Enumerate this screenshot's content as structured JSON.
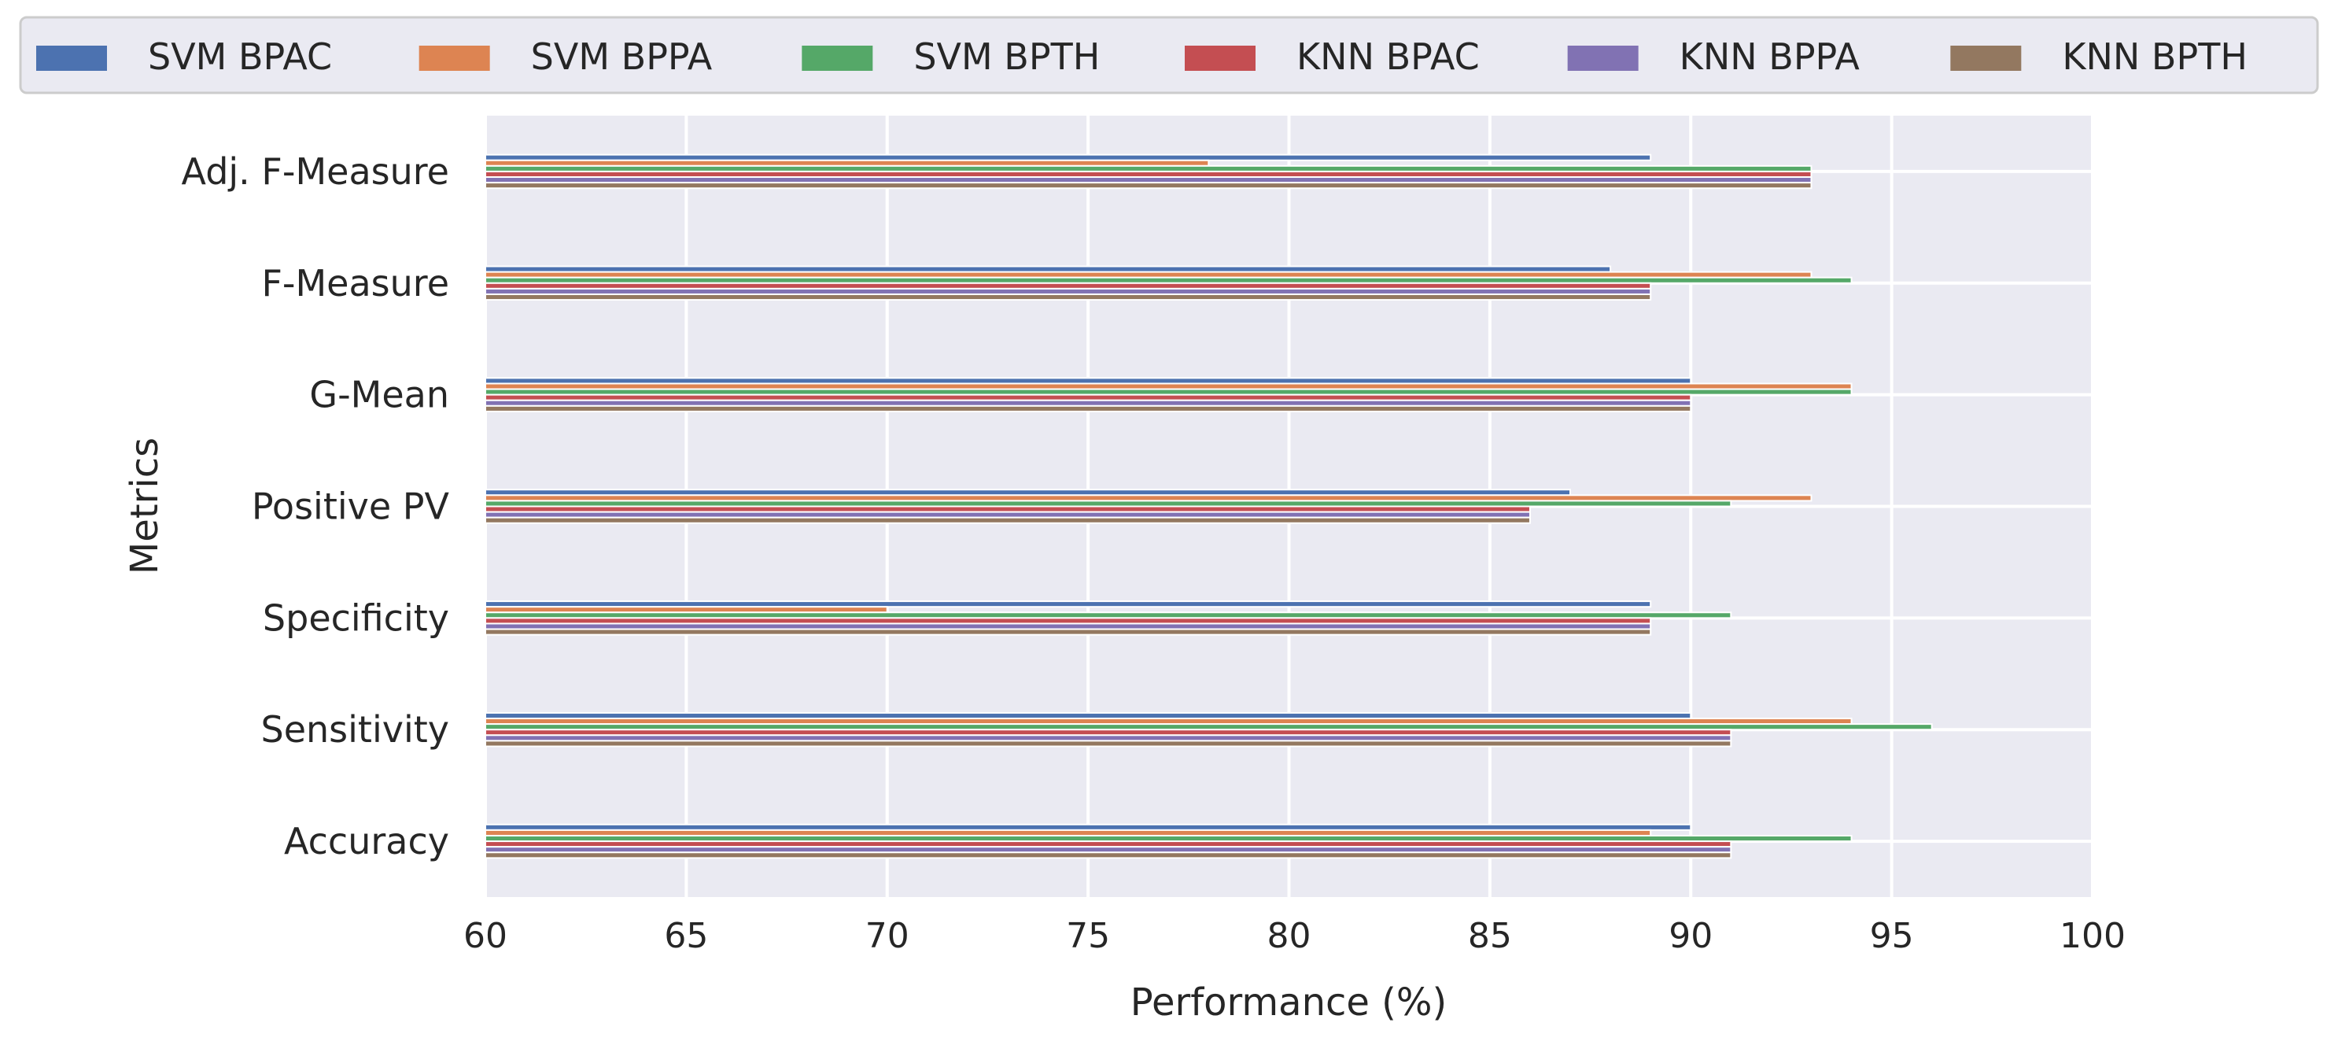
{
  "chart_data": {
    "type": "bar",
    "orientation": "horizontal",
    "title": "",
    "xlabel": "Performance (%)",
    "ylabel": "Metrics",
    "xlim": [
      60,
      100
    ],
    "xticks": [
      60,
      65,
      70,
      75,
      80,
      85,
      90,
      95,
      100
    ],
    "grid": true,
    "legend_position": "top",
    "categories": [
      "Accuracy",
      "Sensitivity",
      "Specificity",
      "Positive PV",
      "G-Mean",
      "F-Measure",
      "Adj. F-Measure"
    ],
    "series": [
      {
        "name": "SVM BPAC",
        "color": "#4c72b0",
        "values": [
          90,
          90,
          89,
          87,
          90,
          88,
          89
        ]
      },
      {
        "name": "SVM BPPA",
        "color": "#dd8452",
        "values": [
          89,
          94,
          70,
          93,
          94,
          93,
          78
        ]
      },
      {
        "name": "SVM BPTH",
        "color": "#55a868",
        "values": [
          94,
          96,
          91,
          91,
          94,
          94,
          93
        ]
      },
      {
        "name": "KNN BPAC",
        "color": "#c44e52",
        "values": [
          91,
          91,
          89,
          86,
          90,
          89,
          93
        ]
      },
      {
        "name": "KNN BPPA",
        "color": "#8172b3",
        "values": [
          91,
          91,
          89,
          86,
          90,
          89,
          93
        ]
      },
      {
        "name": "KNN BPTH",
        "color": "#937860",
        "values": [
          91,
          91,
          89,
          86,
          90,
          89,
          93
        ]
      }
    ]
  }
}
